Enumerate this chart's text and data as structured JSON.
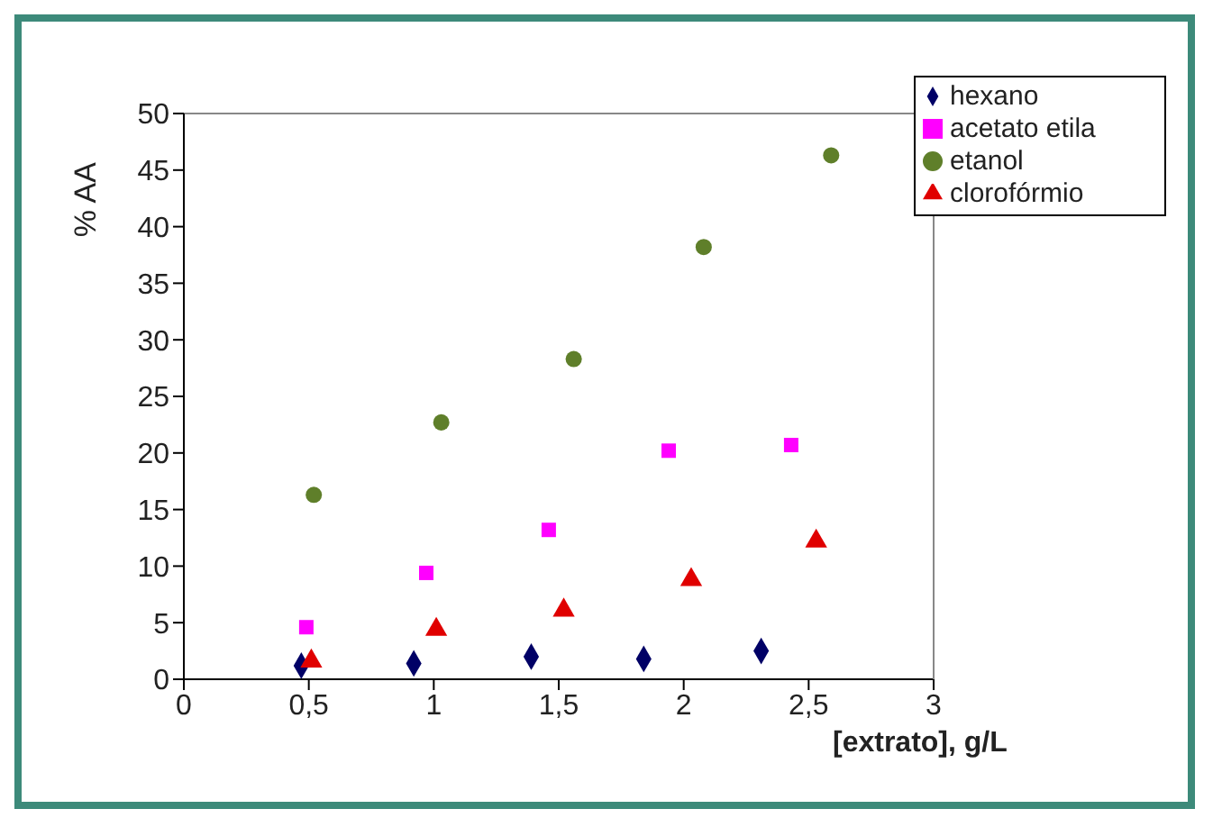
{
  "chart_data": {
    "type": "scatter",
    "xlabel": "[extrato], g/L",
    "ylabel": "% AA",
    "xlim": [
      0,
      3
    ],
    "xticks": [
      0,
      {
        "value": 0.5,
        "label": "0,5"
      },
      1,
      {
        "value": 1.5,
        "label": "1,5"
      },
      2,
      {
        "value": 2.5,
        "label": "2,5"
      },
      3
    ],
    "ylim": [
      0,
      50
    ],
    "yticks": [
      0,
      5,
      10,
      15,
      20,
      25,
      30,
      35,
      40,
      45,
      50
    ],
    "legend": "top right",
    "series": [
      {
        "name": "hexano",
        "color": "#000066",
        "marker": "diamond",
        "x": [
          0.47,
          0.92,
          1.39,
          1.84,
          2.31
        ],
        "values": [
          1.2,
          1.4,
          2.0,
          1.8,
          2.5
        ]
      },
      {
        "name": "acetato etila",
        "color": "#ff00ff",
        "marker": "square",
        "x": [
          0.49,
          0.97,
          1.46,
          1.94,
          2.43
        ],
        "values": [
          4.6,
          9.4,
          13.2,
          20.2,
          20.7
        ]
      },
      {
        "name": "etanol",
        "color": "#5f7f2a",
        "marker": "circle",
        "x": [
          0.52,
          1.03,
          1.56,
          2.08,
          2.59
        ],
        "values": [
          16.3,
          22.7,
          28.3,
          38.2,
          46.3
        ]
      },
      {
        "name": "clorofórmio",
        "color": "#e00000",
        "marker": "triangle",
        "x": [
          0.51,
          1.01,
          1.52,
          2.03,
          2.53
        ],
        "values": [
          1.6,
          4.4,
          6.1,
          8.8,
          12.2
        ]
      }
    ]
  }
}
